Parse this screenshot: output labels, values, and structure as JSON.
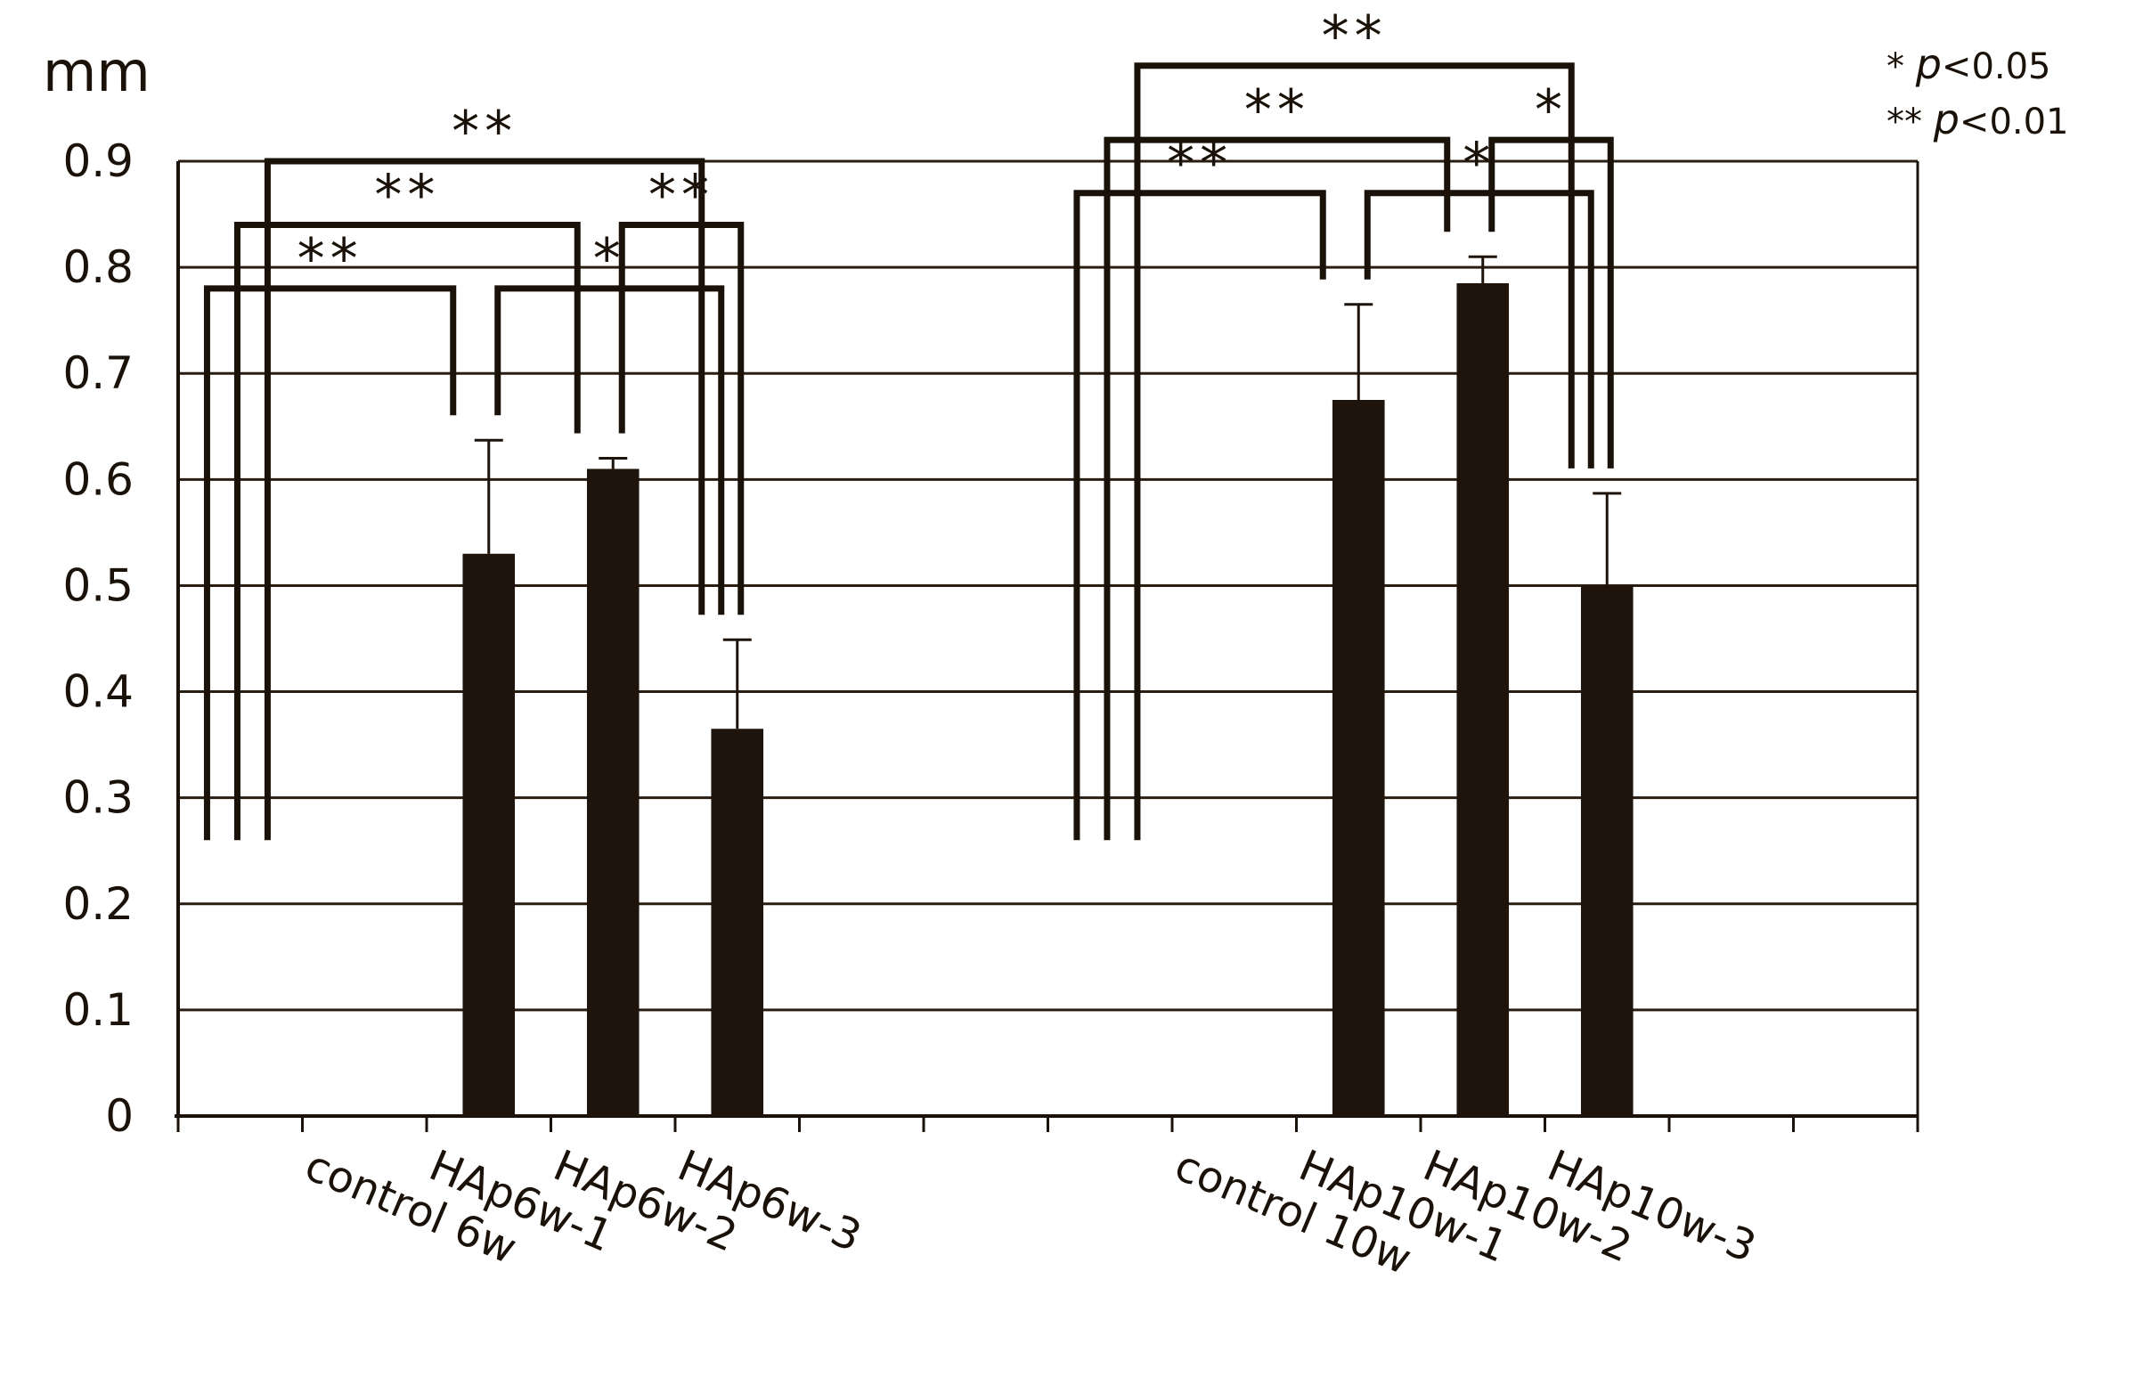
{
  "chart_data": {
    "type": "bar",
    "ylabel": "mm",
    "ylim": [
      0,
      0.9
    ],
    "yticks": [
      "0",
      "0.1",
      "0.2",
      "0.3",
      "0.4",
      "0.5",
      "0.6",
      "0.7",
      "0.8",
      "0.9"
    ],
    "grid": true,
    "bar_color": "#1f140c",
    "categories": [
      "control 6w",
      "HAp6w-1",
      "HAp6w-2",
      "HAp6w-3",
      "control 10w",
      "HAp10w-1",
      "HAp10w-2",
      "HAp10w-3"
    ],
    "values": [
      0,
      0.53,
      0.61,
      0.365,
      0,
      0.675,
      0.785,
      0.5
    ],
    "errors": [
      0,
      0.107,
      0.01,
      0.084,
      0,
      0.09,
      0.025,
      0.087
    ],
    "significance": [
      {
        "from": "control 6w",
        "to": "HAp6w-1",
        "label": "**",
        "level": 0.78
      },
      {
        "from": "control 6w",
        "to": "HAp6w-2",
        "label": "**",
        "level": 0.84
      },
      {
        "from": "control 6w",
        "to": "HAp6w-3",
        "label": "**",
        "level": 0.9
      },
      {
        "from": "HAp6w-1",
        "to": "HAp6w-3",
        "label": "*",
        "level": 0.78
      },
      {
        "from": "HAp6w-2",
        "to": "HAp6w-3",
        "label": "**",
        "level": 0.84
      },
      {
        "from": "control 10w",
        "to": "HAp10w-1",
        "label": "**",
        "level": 0.87
      },
      {
        "from": "control 10w",
        "to": "HAp10w-2",
        "label": "**",
        "level": 0.92
      },
      {
        "from": "control 10w",
        "to": "HAp10w-3",
        "label": "**",
        "level": 0.99
      },
      {
        "from": "HAp10w-1",
        "to": "HAp10w-3",
        "label": "*",
        "level": 0.87
      },
      {
        "from": "HAp10w-2",
        "to": "HAp10w-3",
        "label": "*",
        "level": 0.92
      }
    ],
    "legend": [
      {
        "stars": "*",
        "p": "p",
        "text": "<0.05"
      },
      {
        "stars": "**",
        "p": "p",
        "text": "<0.01"
      }
    ]
  }
}
